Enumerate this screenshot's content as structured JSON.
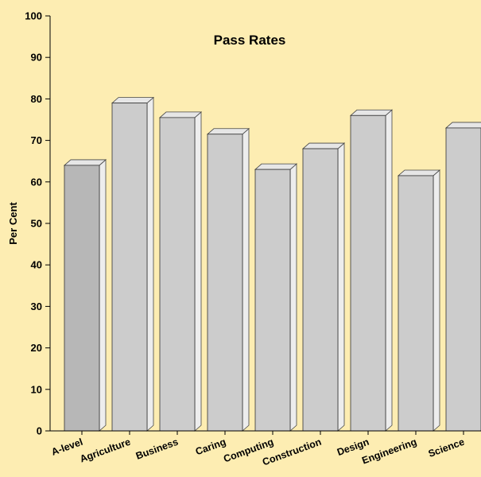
{
  "chart_data": {
    "type": "bar",
    "title": "Pass Rates",
    "xlabel": "",
    "ylabel": "Per Cent",
    "ylim": [
      0,
      100
    ],
    "yticks": [
      0,
      10,
      20,
      30,
      40,
      50,
      60,
      70,
      80,
      90,
      100
    ],
    "grid": false,
    "categories": [
      "A-level",
      "Agriculture",
      "Business",
      "Caring",
      "Computing",
      "Construction",
      "Design",
      "Engineering",
      "Science"
    ],
    "values": [
      64,
      79,
      75.5,
      71.5,
      63,
      68,
      76,
      61.5,
      73
    ],
    "colors": {
      "background": "#fdedb2",
      "bar_highlight": "#b7b7b7",
      "bar": "#cccccc",
      "bar_top": "#e6e6e6",
      "bar_side": "#ededed",
      "axis": "#000000"
    }
  }
}
